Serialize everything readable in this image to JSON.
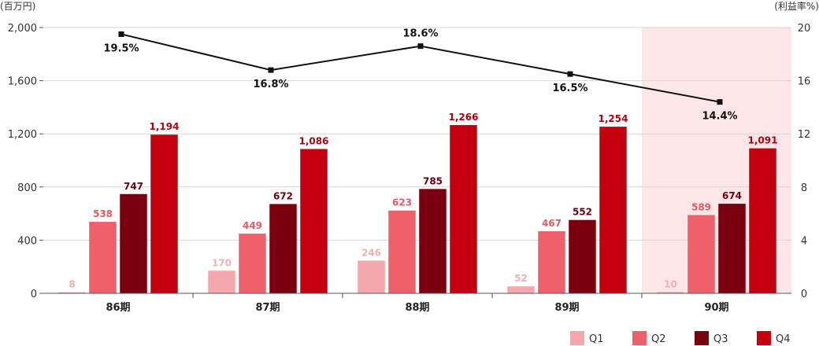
{
  "chart_data": {
    "type": "bar",
    "left_unit": "(百万円)",
    "right_unit": "(利益率%)",
    "categories": [
      "86期",
      "87期",
      "88期",
      "89期",
      "90期"
    ],
    "highlight_category": "90期",
    "highlight_color": "#fde6e8",
    "y_left": {
      "min": 0,
      "max": 2000,
      "ticks": [
        "0",
        "400",
        "800",
        "1,200",
        "1,600",
        "2,000"
      ]
    },
    "y_right": {
      "min": 0,
      "max": 20,
      "ticks": [
        "0",
        "4",
        "8",
        "12",
        "16",
        "20"
      ]
    },
    "series": [
      {
        "name": "Q1",
        "color": "#f4a8ac",
        "label_color": "#f0b0b4",
        "values": [
          8,
          170,
          246,
          52,
          10
        ],
        "labels": [
          "8",
          "170",
          "246",
          "52",
          "10"
        ]
      },
      {
        "name": "Q2",
        "color": "#f0606a",
        "label_color": "#e65a64",
        "values": [
          538,
          449,
          623,
          467,
          589
        ],
        "labels": [
          "538",
          "449",
          "623",
          "467",
          "589"
        ]
      },
      {
        "name": "Q3",
        "color": "#7a0010",
        "label_color": "#6a0010",
        "values": [
          747,
          672,
          785,
          552,
          674
        ],
        "labels": [
          "747",
          "672",
          "785",
          "552",
          "674"
        ]
      },
      {
        "name": "Q4",
        "color": "#c4000f",
        "label_color": "#b0000e",
        "values": [
          1194,
          1086,
          1266,
          1254,
          1091
        ],
        "labels": [
          "1,194",
          "1,086",
          "1,266",
          "1,254",
          "1,091"
        ]
      }
    ],
    "line": {
      "name": "利益率",
      "axis": "right",
      "color": "#111111",
      "values": [
        19.5,
        16.8,
        18.6,
        16.5,
        14.4
      ],
      "labels": [
        "19.5%",
        "16.8%",
        "18.6%",
        "16.5%",
        "14.4%"
      ]
    },
    "legend": {
      "position": "bottom-right",
      "labels": [
        "Q1",
        "Q2",
        "Q3",
        "Q4"
      ]
    }
  }
}
